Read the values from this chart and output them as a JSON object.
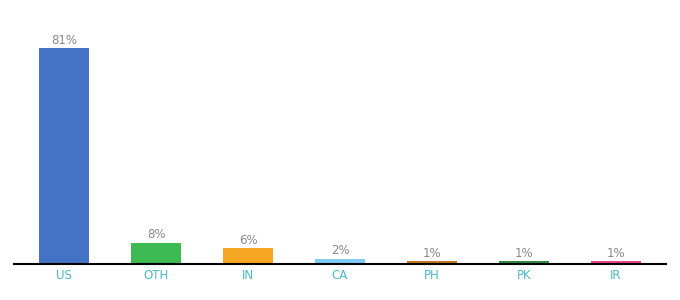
{
  "categories": [
    "US",
    "OTH",
    "IN",
    "CA",
    "PH",
    "PK",
    "IR"
  ],
  "values": [
    81,
    8,
    6,
    2,
    1,
    1,
    1
  ],
  "bar_colors": [
    "#4472c4",
    "#3dba54",
    "#f5a623",
    "#7ecbf7",
    "#c07820",
    "#2d8a3e",
    "#e8428c"
  ],
  "labels": [
    "81%",
    "8%",
    "6%",
    "2%",
    "1%",
    "1%",
    "1%"
  ],
  "ylim": [
    0,
    90
  ],
  "background_color": "#ffffff",
  "label_color": "#888888",
  "label_fontsize": 8.5,
  "tick_color": "#4db8c8",
  "tick_fontsize": 8.5,
  "bar_width": 0.55
}
